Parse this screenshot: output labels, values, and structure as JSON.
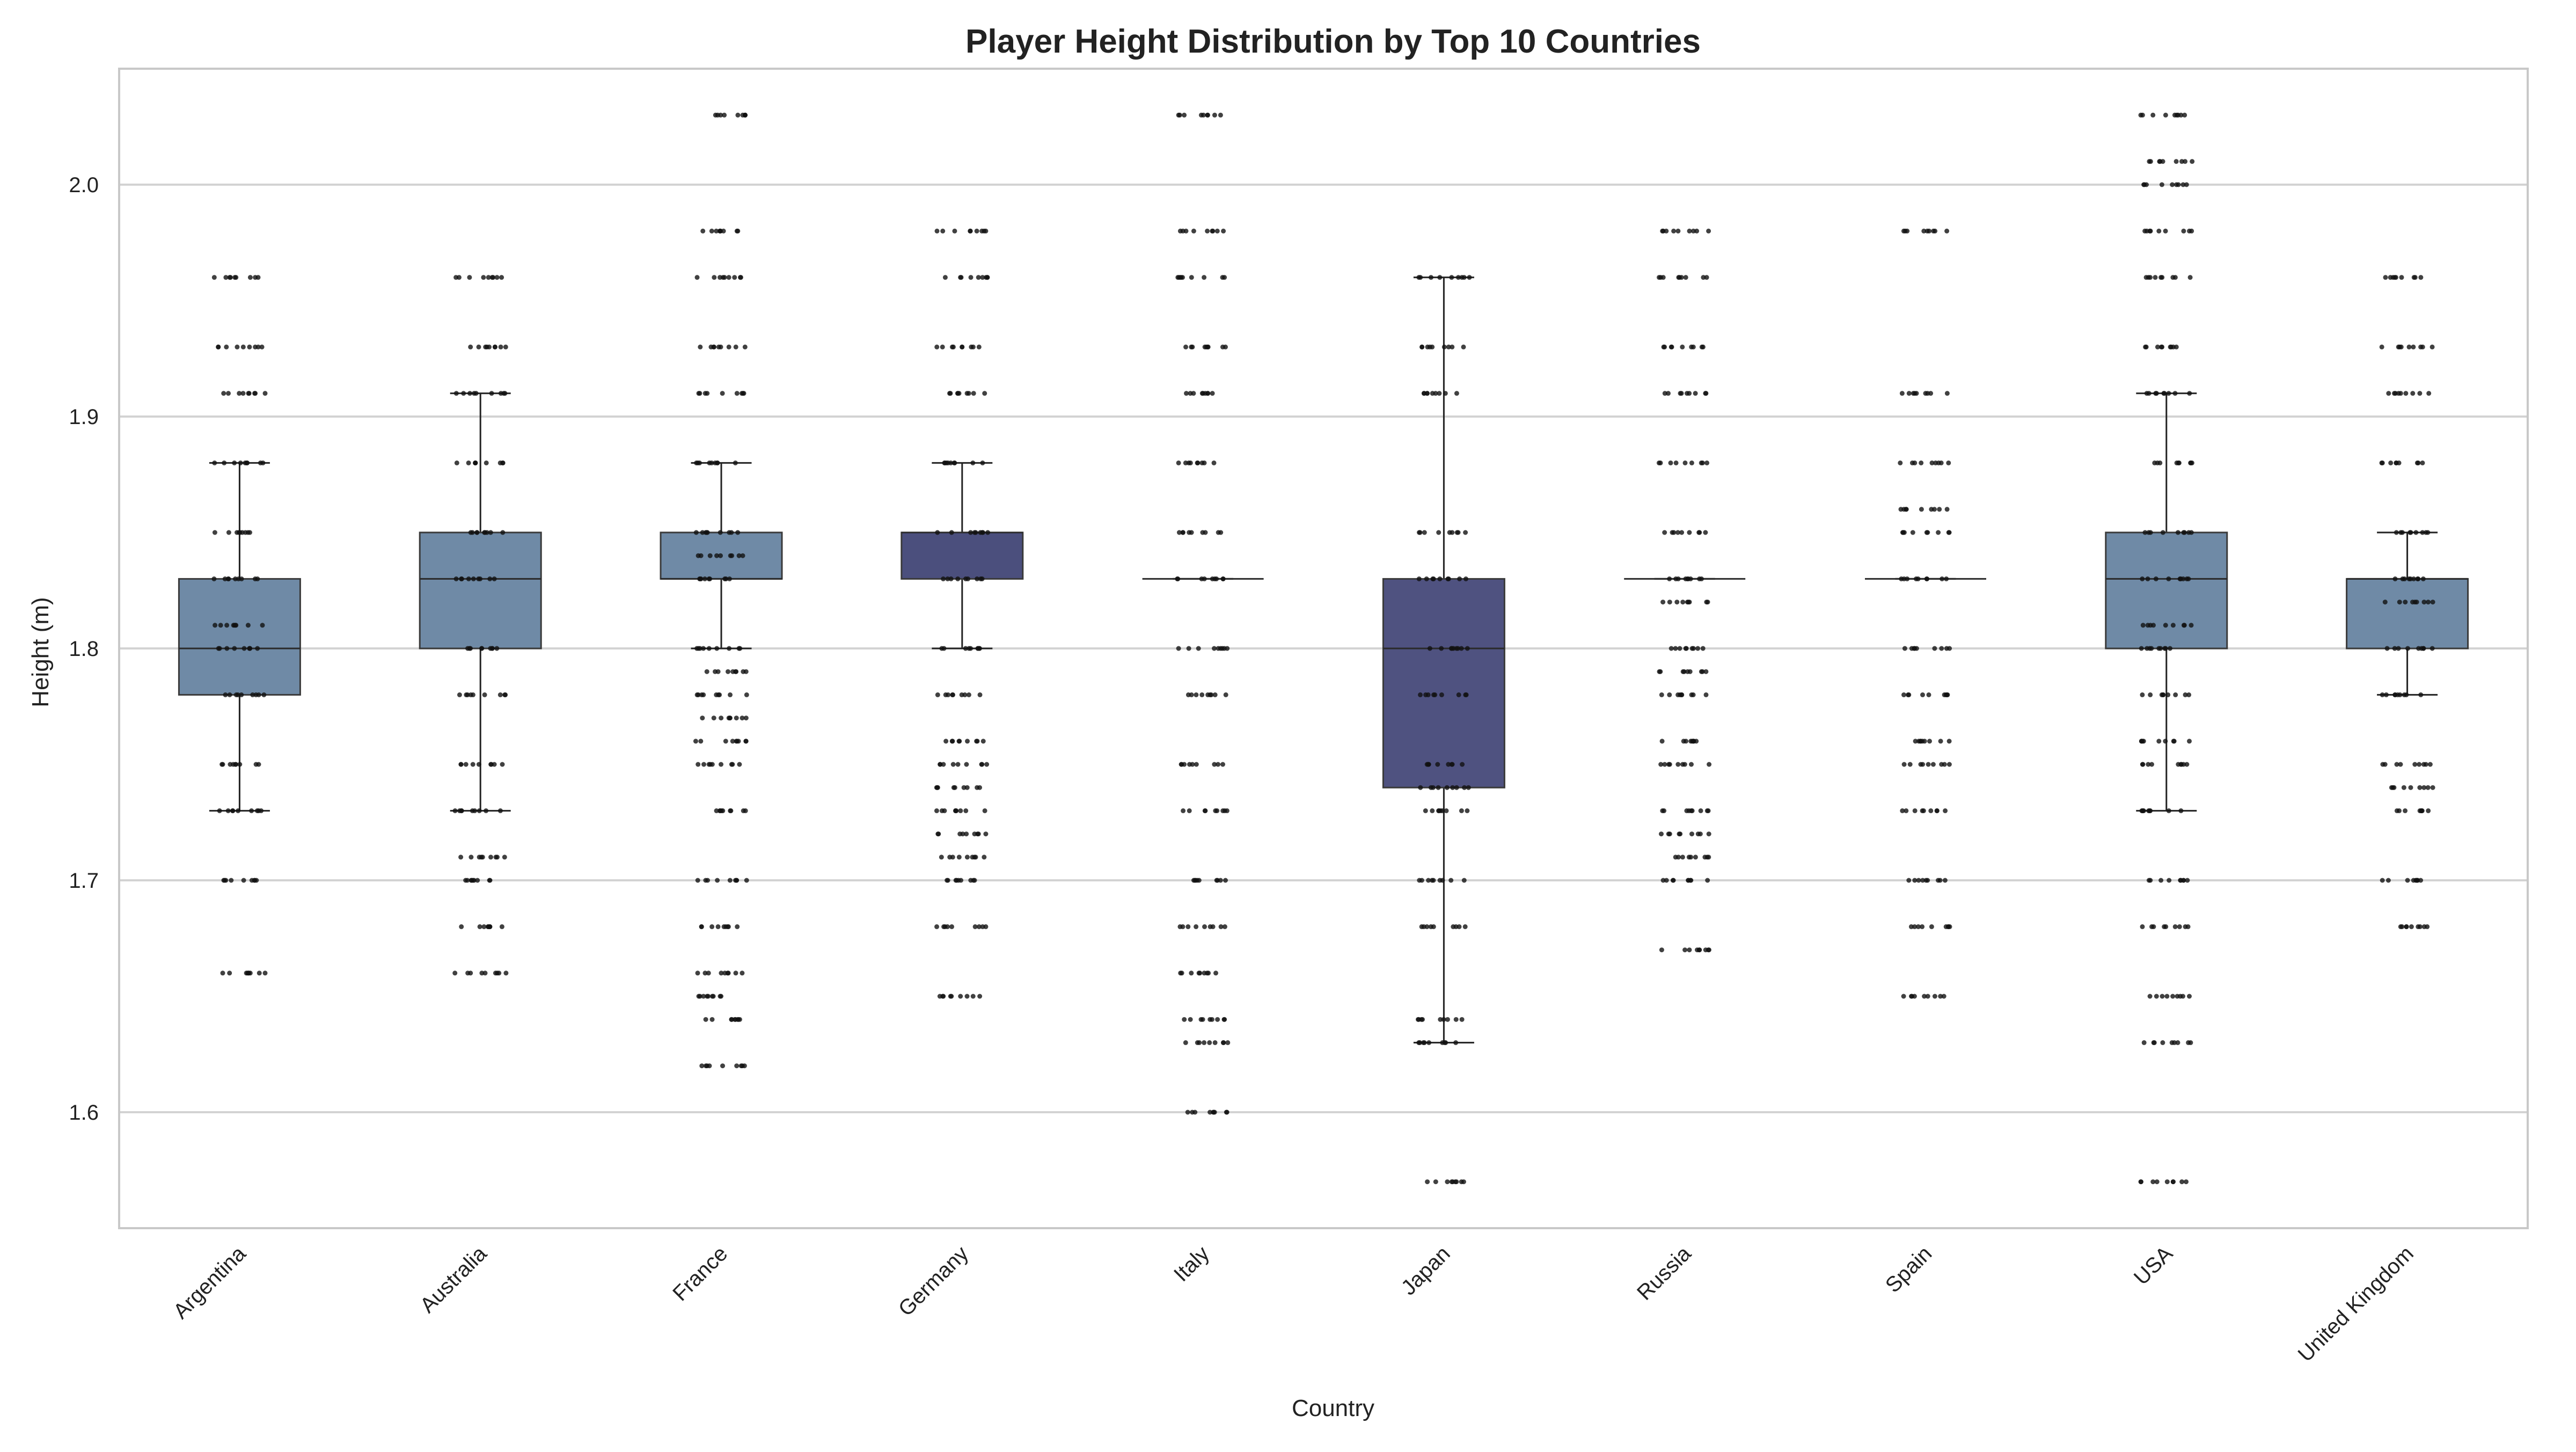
{
  "chart_data": {
    "type": "box",
    "title": "Player Height Distribution by Top 10 Countries",
    "xlabel": "Country",
    "ylabel": "Height (m)",
    "ylim": [
      1.55,
      2.05
    ],
    "yticks": [
      "1.6",
      "1.7",
      "1.8",
      "1.9",
      "2.0"
    ],
    "grid": "horizontal",
    "categories": [
      "Argentina",
      "Australia",
      "France",
      "Germany",
      "Italy",
      "Japan",
      "Russia",
      "Spain",
      "USA",
      "United Kingdom"
    ],
    "series": [
      {
        "boxes": [
          {
            "whisker_low": 1.73,
            "q1": 1.78,
            "median": 1.8,
            "q3": 1.83,
            "whisker_high": 1.88
          },
          {
            "whisker_low": 1.73,
            "q1": 1.8,
            "median": 1.83,
            "q3": 1.85,
            "whisker_high": 1.91
          },
          {
            "whisker_low": 1.8,
            "q1": 1.83,
            "median": 1.83,
            "q3": 1.85,
            "whisker_high": 1.88
          },
          {
            "whisker_low": 1.8,
            "q1": 1.83,
            "median": 1.85,
            "q3": 1.85,
            "whisker_high": 1.88
          },
          {
            "whisker_low": 1.83,
            "q1": 1.83,
            "median": 1.83,
            "q3": 1.83,
            "whisker_high": 1.83
          },
          {
            "whisker_low": 1.63,
            "q1": 1.74,
            "median": 1.8,
            "q3": 1.83,
            "whisker_high": 1.96
          },
          {
            "whisker_low": 1.83,
            "q1": 1.83,
            "median": 1.83,
            "q3": 1.83,
            "whisker_high": 1.83
          },
          {
            "whisker_low": 1.83,
            "q1": 1.83,
            "median": 1.83,
            "q3": 1.83,
            "whisker_high": 1.83
          },
          {
            "whisker_low": 1.73,
            "q1": 1.8,
            "median": 1.83,
            "q3": 1.85,
            "whisker_high": 1.91
          },
          {
            "whisker_low": 1.78,
            "q1": 1.8,
            "median": 1.83,
            "q3": 1.83,
            "whisker_high": 1.85
          }
        ],
        "points": [
          [
            1.66,
            1.7,
            1.73,
            1.75,
            1.78,
            1.8,
            1.81,
            1.83,
            1.85,
            1.88,
            1.91,
            1.93,
            1.96
          ],
          [
            1.66,
            1.68,
            1.7,
            1.71,
            1.73,
            1.75,
            1.78,
            1.8,
            1.83,
            1.85,
            1.88,
            1.91,
            1.93,
            1.96
          ],
          [
            1.62,
            1.64,
            1.65,
            1.66,
            1.68,
            1.7,
            1.73,
            1.75,
            1.76,
            1.77,
            1.78,
            1.79,
            1.8,
            1.83,
            1.84,
            1.85,
            1.88,
            1.91,
            1.93,
            1.96,
            1.98,
            2.03
          ],
          [
            1.65,
            1.68,
            1.7,
            1.71,
            1.72,
            1.73,
            1.74,
            1.75,
            1.76,
            1.78,
            1.8,
            1.83,
            1.85,
            1.88,
            1.91,
            1.93,
            1.96,
            1.98
          ],
          [
            1.6,
            1.63,
            1.64,
            1.66,
            1.68,
            1.7,
            1.73,
            1.75,
            1.78,
            1.8,
            1.83,
            1.85,
            1.88,
            1.91,
            1.93,
            1.96,
            1.98,
            2.03
          ],
          [
            1.57,
            1.63,
            1.64,
            1.68,
            1.7,
            1.73,
            1.74,
            1.75,
            1.78,
            1.8,
            1.83,
            1.85,
            1.91,
            1.93,
            1.96
          ],
          [
            1.67,
            1.7,
            1.71,
            1.72,
            1.73,
            1.75,
            1.76,
            1.78,
            1.79,
            1.8,
            1.82,
            1.83,
            1.85,
            1.88,
            1.91,
            1.93,
            1.96,
            1.98
          ],
          [
            1.65,
            1.68,
            1.7,
            1.73,
            1.75,
            1.76,
            1.78,
            1.8,
            1.83,
            1.85,
            1.86,
            1.88,
            1.91,
            1.98
          ],
          [
            1.57,
            1.63,
            1.65,
            1.68,
            1.7,
            1.73,
            1.75,
            1.76,
            1.78,
            1.8,
            1.81,
            1.83,
            1.85,
            1.88,
            1.91,
            1.93,
            1.96,
            1.98,
            2.0,
            2.01,
            2.03
          ],
          [
            1.68,
            1.7,
            1.73,
            1.74,
            1.75,
            1.78,
            1.8,
            1.82,
            1.83,
            1.85,
            1.88,
            1.91,
            1.93,
            1.96
          ]
        ],
        "box_colors": [
          "#6f8aa6",
          "#6f8aa6",
          "#6f8aa6",
          "#4b4f7d",
          "#6f8aa6",
          "#4f5280",
          "#6f8aa6",
          "#6f8aa6",
          "#6f8aa6",
          "#6f8aa6"
        ]
      }
    ]
  },
  "colors": {
    "grid": "#d3d3d3",
    "frame": "#c8c8c8",
    "whisker": "#222222",
    "point": "#111111"
  }
}
